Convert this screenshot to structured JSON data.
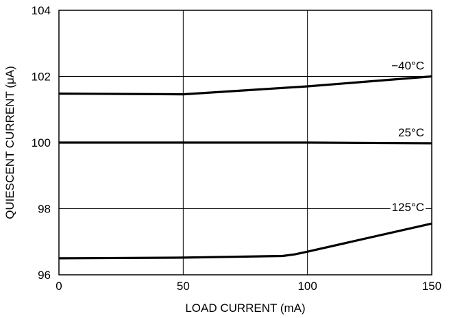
{
  "chart_data": {
    "type": "line",
    "title": "",
    "xlabel": "LOAD CURRENT (mA)",
    "ylabel": "QUIESCENT CURRENT (μA)",
    "xlim": [
      0,
      150
    ],
    "ylim": [
      96,
      104
    ],
    "xticks": [
      0,
      50,
      100,
      150
    ],
    "yticks": [
      96,
      98,
      100,
      102,
      104
    ],
    "xtick_labels": [
      "0",
      "50",
      "100",
      "150"
    ],
    "ytick_labels": [
      "96",
      "98",
      "100",
      "102",
      "104"
    ],
    "grid": true,
    "legend": "none",
    "series": [
      {
        "name": "−40°C",
        "x": [
          0,
          50,
          100,
          150
        ],
        "y": [
          101.48,
          101.46,
          101.7,
          102.0
        ]
      },
      {
        "name": "25°C",
        "x": [
          0,
          50,
          100,
          150
        ],
        "y": [
          100.0,
          100.0,
          100.0,
          99.98
        ]
      },
      {
        "name": "125°C",
        "x": [
          0,
          50,
          90,
          95,
          100,
          150
        ],
        "y": [
          96.5,
          96.52,
          96.57,
          96.62,
          96.7,
          97.55
        ]
      }
    ]
  },
  "colors": {
    "line": "#000000",
    "grid": "#000000",
    "background": "#ffffff"
  }
}
